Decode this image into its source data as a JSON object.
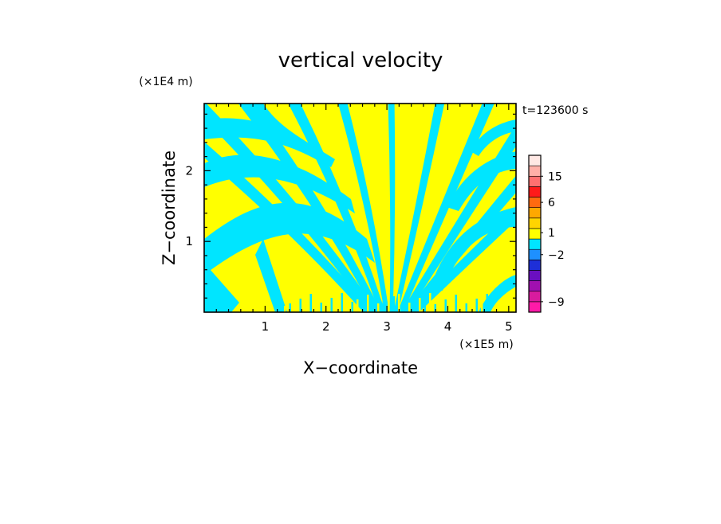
{
  "chart_data": {
    "type": "heatmap",
    "title": "vertical velocity",
    "xlabel": "X−coordinate",
    "ylabel": "Z−coordinate",
    "x_unit": "(×1E5 m)",
    "y_unit": "(×1E4 m)",
    "time_label": "t=123600 s",
    "xlim": [
      0,
      5.12
    ],
    "ylim": [
      0,
      2.95
    ],
    "x_ticks": [
      1,
      2,
      3,
      4,
      5
    ],
    "y_ticks": [
      1,
      2
    ],
    "x_tick_labels": [
      "1",
      "2",
      "3",
      "4",
      "5"
    ],
    "y_tick_labels": [
      "1",
      "2"
    ],
    "field_colors": {
      "positive": "#ffff00",
      "negative": "#00e5ff"
    },
    "colorbar": {
      "bins": [
        {
          "color": "#ff1aa8"
        },
        {
          "color": "#d81b9e"
        },
        {
          "color": "#a010b0"
        },
        {
          "color": "#6a0fc0"
        },
        {
          "color": "#1e2fd8"
        },
        {
          "color": "#1e90ff"
        },
        {
          "color": "#00e5ff"
        },
        {
          "color": "#ffff00"
        },
        {
          "color": "#ffd400"
        },
        {
          "color": "#ffa800"
        },
        {
          "color": "#ff6a10"
        },
        {
          "color": "#ff1a1a"
        },
        {
          "color": "#ff7070"
        },
        {
          "color": "#ffb0a8"
        },
        {
          "color": "#ffe8e4"
        }
      ],
      "labels": [
        {
          "text": "−9",
          "bin": 1
        },
        {
          "text": "−2",
          "bin": 5.5
        },
        {
          "text": "1",
          "bin": 7.6
        },
        {
          "text": "6",
          "bin": 10.5
        },
        {
          "text": "15",
          "bin": 13
        }
      ]
    }
  }
}
